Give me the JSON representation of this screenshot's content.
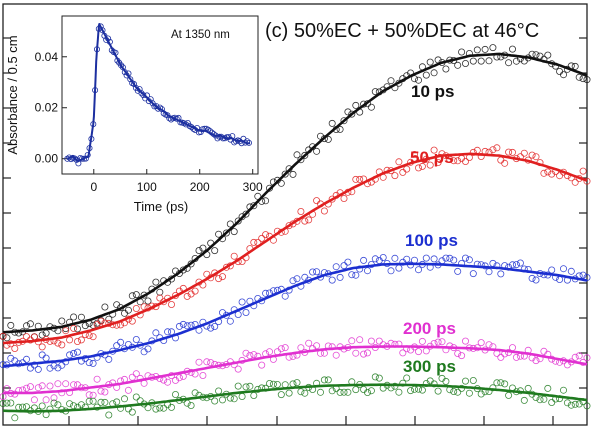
{
  "chart_data": [
    {
      "type": "line",
      "title": "(c) 50%EC + 50%DEC at 46°C",
      "xlabel": "",
      "ylabel": "",
      "x": [
        0.0,
        0.05,
        0.1,
        0.15,
        0.2,
        0.25,
        0.3,
        0.35,
        0.4,
        0.45,
        0.5,
        0.55,
        0.6,
        0.65,
        0.7,
        0.75,
        0.8,
        0.85,
        0.9,
        0.95,
        1.0
      ],
      "series": [
        {
          "name": "10 ps",
          "color": "#111111",
          "values": [
            0.03,
            0.035,
            0.045,
            0.065,
            0.095,
            0.14,
            0.195,
            0.26,
            0.335,
            0.42,
            0.5,
            0.575,
            0.645,
            0.705,
            0.75,
            0.785,
            0.805,
            0.81,
            0.8,
            0.78,
            0.75
          ]
        },
        {
          "name": "50 ps",
          "color": "#e02020",
          "values": [
            0.0,
            0.005,
            0.015,
            0.035,
            0.06,
            0.095,
            0.135,
            0.18,
            0.23,
            0.285,
            0.34,
            0.39,
            0.435,
            0.475,
            0.505,
            0.525,
            0.53,
            0.525,
            0.51,
            0.485,
            0.455
          ]
        },
        {
          "name": "100 ps",
          "color": "#1c2fd0",
          "values": [
            -0.065,
            -0.058,
            -0.05,
            -0.038,
            -0.02,
            0.0,
            0.025,
            0.055,
            0.09,
            0.125,
            0.16,
            0.19,
            0.21,
            0.22,
            0.222,
            0.22,
            0.215,
            0.21,
            0.2,
            0.19,
            0.175
          ]
        },
        {
          "name": "200 ps",
          "color": "#e030d0",
          "values": [
            -0.14,
            -0.14,
            -0.135,
            -0.125,
            -0.115,
            -0.1,
            -0.085,
            -0.07,
            -0.055,
            -0.04,
            -0.028,
            -0.018,
            -0.012,
            -0.01,
            -0.01,
            -0.012,
            -0.015,
            -0.02,
            -0.03,
            -0.045,
            -0.06
          ]
        },
        {
          "name": "300 ps",
          "color": "#1f7a1f",
          "values": [
            -0.19,
            -0.192,
            -0.19,
            -0.185,
            -0.178,
            -0.17,
            -0.16,
            -0.15,
            -0.14,
            -0.132,
            -0.125,
            -0.12,
            -0.118,
            -0.117,
            -0.118,
            -0.12,
            -0.125,
            -0.132,
            -0.14,
            -0.15,
            -0.16
          ]
        }
      ],
      "ylim": [
        -0.23,
        0.95
      ],
      "grid": false
    },
    {
      "type": "scatter",
      "title": "At 1350 nm",
      "xlabel": "Time (ps)",
      "ylabel": "Absorbance / 0.5 cm",
      "xlim": [
        -60,
        310
      ],
      "ylim": [
        -0.006,
        0.056
      ],
      "xticks": [
        0,
        100,
        200,
        300
      ],
      "yticks": [
        0.0,
        0.02,
        0.04
      ],
      "ytick_labels": [
        "0.00",
        "0.02",
        "0.04"
      ],
      "x": [
        -50,
        -40,
        -30,
        -20,
        -10,
        0,
        5,
        10,
        15,
        20,
        30,
        40,
        50,
        60,
        70,
        80,
        90,
        100,
        110,
        120,
        130,
        140,
        150,
        160,
        170,
        180,
        190,
        200,
        210,
        220,
        230,
        240,
        250,
        260,
        270,
        280,
        290
      ],
      "values": [
        0.0,
        0.001,
        -0.001,
        0.0,
        0.001,
        0.015,
        0.04,
        0.053,
        0.051,
        0.049,
        0.045,
        0.041,
        0.037,
        0.034,
        0.031,
        0.028,
        0.026,
        0.024,
        0.022,
        0.02,
        0.019,
        0.017,
        0.016,
        0.015,
        0.014,
        0.013,
        0.012,
        0.011,
        0.011,
        0.01,
        0.009,
        0.009,
        0.008,
        0.008,
        0.007,
        0.007,
        0.006
      ],
      "series": [
        {
          "name": "",
          "color": "#1c2fa0"
        }
      ]
    }
  ]
}
